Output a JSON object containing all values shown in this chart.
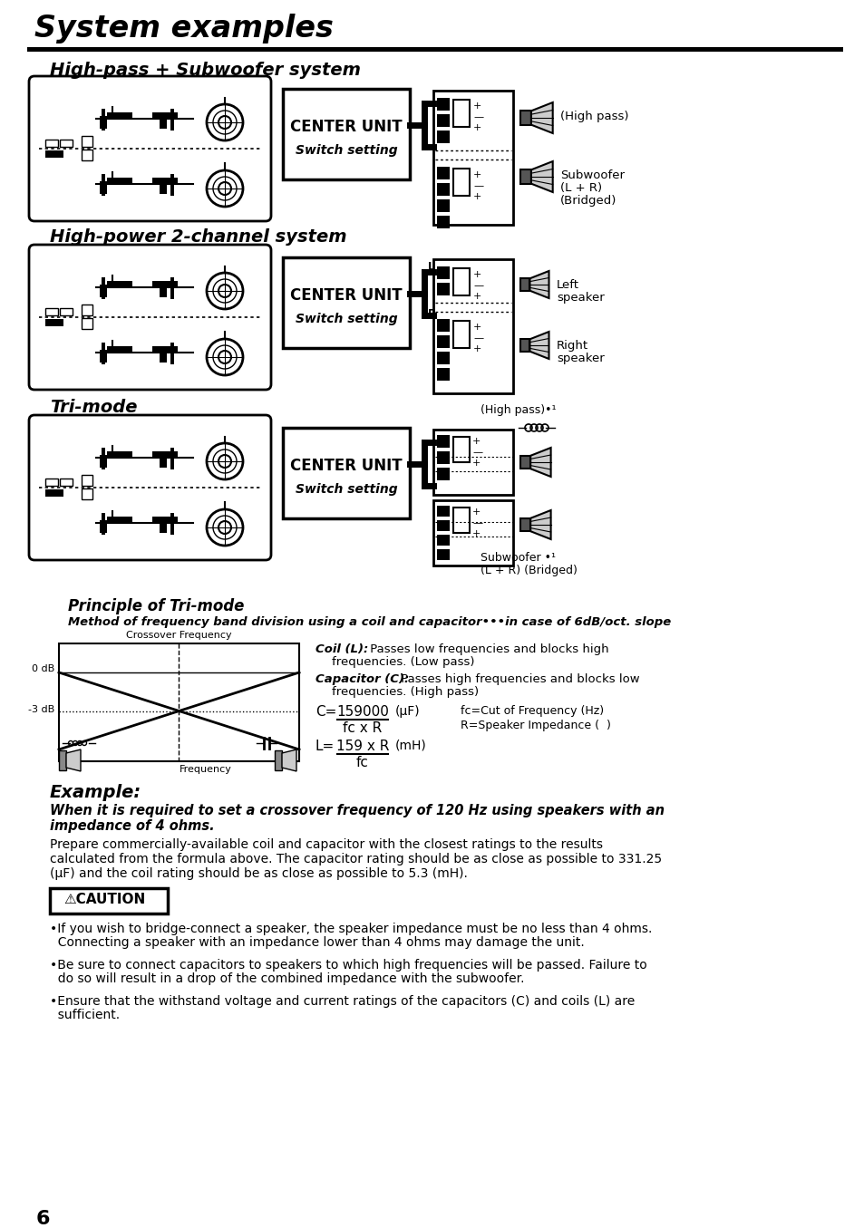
{
  "title": "System examples",
  "bg_color": "#ffffff",
  "section1_title": "High-pass + Subwoofer system",
  "section2_title": "High-power 2-channel system",
  "section3_title": "Tri-mode",
  "center_unit_label": "CENTER UNIT",
  "switch_setting_label": "Switch setting",
  "high_pass_label": "(High pass)",
  "sub_label_lines": [
    "Subwoofer",
    "(L + R)",
    "(Bridged)"
  ],
  "left_speaker_label": [
    "Left",
    "speaker"
  ],
  "right_speaker_label": [
    "Right",
    "speaker"
  ],
  "sub2_label_lines": [
    "Subwoofer •¹",
    "(L + R) (Bridged)"
  ],
  "high_pass_label2": "(High pass)•¹",
  "principle_title": "Principle of Tri-mode",
  "principle_subtitle": "Method of frequency band division using a coil and capacitor•••in case of 6dB/oct. slope",
  "crossover_label": "Crossover Frequency",
  "0db_label": "0 dB",
  "minus3db_label": "-3 dB",
  "frequency_label": "Frequency",
  "coil_bold": "Coil (L):",
  "coil_rest": " Passes low frequencies and blocks high\nfrequencies. (Low pass)",
  "cap_bold": "Capacitor (C):",
  "cap_rest": " Passes high frequencies and blocks low\nfrequencies. (High pass)",
  "formula_c_num": "159000",
  "formula_c_den": "fc x R",
  "formula_c_unit": "(μF)",
  "formula_l_num": "159 x R",
  "formula_l_den": "fc",
  "formula_l_unit": "(mH)",
  "fc_line1": "fc=Cut of Frequency (Hz)",
  "fc_line2": "R=Speaker Impedance (  )",
  "example_title": "Example:",
  "example_sub": "When it is required to set a crossover frequency of 120 Hz using speakers with an\nimpedance of 4 ohms.",
  "example_body1": "Prepare commercially-available coil and capacitor with the closest ratings to the results",
  "example_body2": "calculated from the formula above. The capacitor rating should be as close as possible to 331.25",
  "example_body3": "(μF) and the coil rating should be as close as possible to 5.3 (mH).",
  "caution_label": "⚠CAUTION",
  "bullet1a": "If you wish to bridge-connect a speaker, the speaker impedance must be no less than 4 ohms.",
  "bullet1b": "  Connecting a speaker with an impedance lower than 4 ohms may damage the unit.",
  "bullet2a": "Be sure to connect capacitors to speakers to which high frequencies will be passed. Failure to",
  "bullet2b": "  do so will result in a drop of the combined impedance with the subwoofer.",
  "bullet3a": "Ensure that the withstand voltage and current ratings of the capacitors (C) and coils (L) are",
  "bullet3b": "  sufficient.",
  "page_number": "6"
}
